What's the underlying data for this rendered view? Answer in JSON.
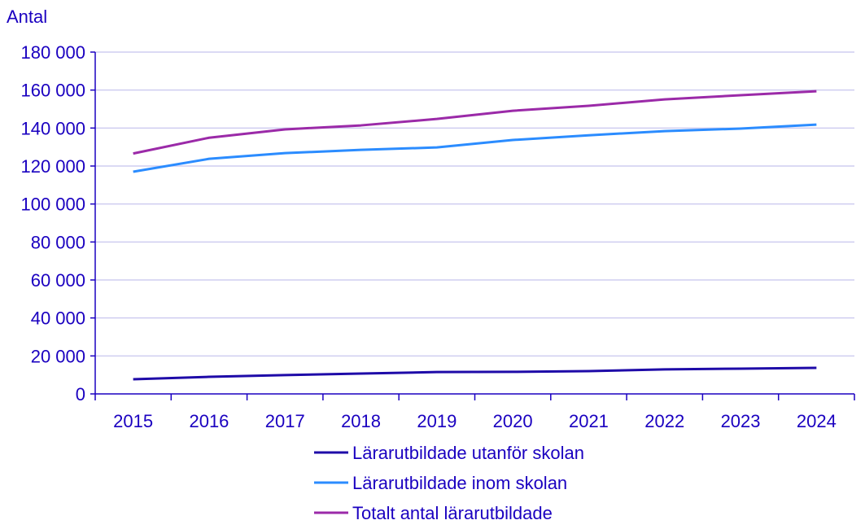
{
  "chart_data": {
    "type": "line",
    "ylabel": "Antal",
    "x": [
      "2015",
      "2016",
      "2017",
      "2018",
      "2019",
      "2020",
      "2021",
      "2022",
      "2023",
      "2024"
    ],
    "ylim": [
      0,
      180000
    ],
    "yticks": [
      0,
      20000,
      40000,
      60000,
      80000,
      100000,
      120000,
      140000,
      160000,
      180000
    ],
    "ytick_labels": [
      "0",
      "20 000",
      "40 000",
      "60 000",
      "80 000",
      "100 000",
      "120 000",
      "140 000",
      "160 000",
      "180 000"
    ],
    "grid": "horizontal",
    "legend_placement": "bottom",
    "series": [
      {
        "name": "Lärarutbildade utanför skolan",
        "color": "#1e0aa8",
        "values": [
          7700,
          9000,
          9900,
          10700,
          11500,
          11600,
          12000,
          12900,
          13300,
          13700
        ]
      },
      {
        "name": "Lärarutbildade inom skolan",
        "color": "#2b8cff",
        "values": [
          117000,
          123800,
          126800,
          128500,
          129800,
          133700,
          136200,
          138400,
          139700,
          141800
        ]
      },
      {
        "name": "Totalt antal lärarutbildade",
        "color": "#9b2aa8",
        "values": [
          126600,
          134900,
          139300,
          141400,
          144800,
          149100,
          151700,
          155100,
          157300,
          159400
        ]
      }
    ],
    "colors": {
      "text": "#1a00c0",
      "grid": "#cfcdf0",
      "axis": "#1a00c0"
    }
  }
}
